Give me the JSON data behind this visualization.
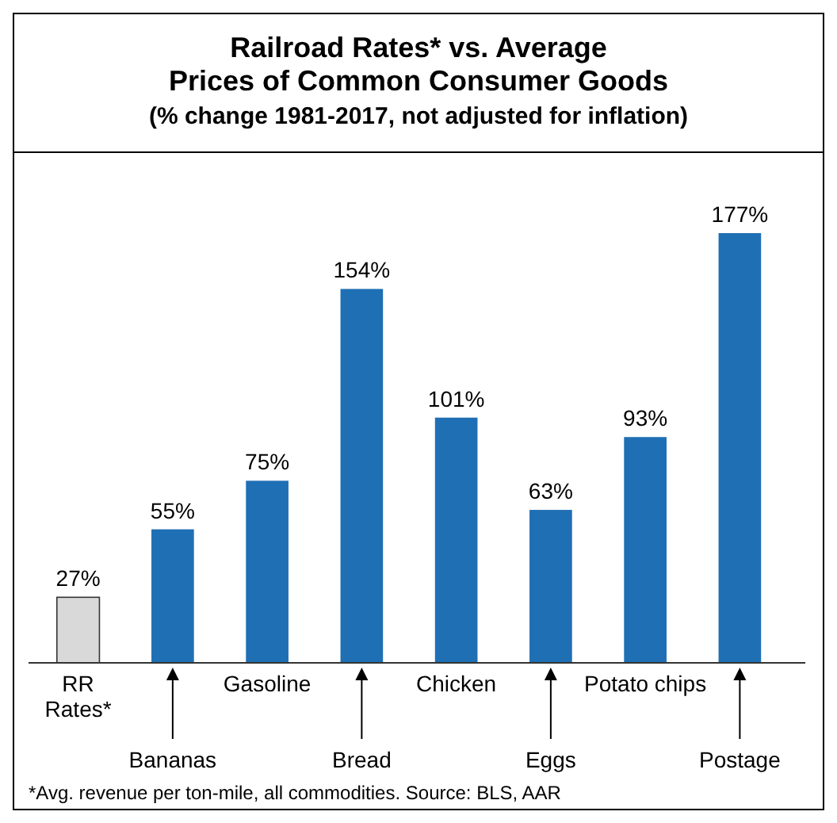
{
  "chart_data": {
    "type": "bar",
    "title": "Railroad Rates* vs. Average Prices of Common Consumer Goods",
    "subtitle": "(% change 1981-2017, not adjusted for inflation)",
    "categories": [
      "RR Rates*",
      "Bananas",
      "Gasoline",
      "Bread",
      "Chicken",
      "Eggs",
      "Potato chips",
      "Postage"
    ],
    "values": [
      27,
      55,
      75,
      154,
      101,
      63,
      93,
      177
    ],
    "colors": [
      "#d9d9d9",
      "#1f6fb4",
      "#1f6fb4",
      "#1f6fb4",
      "#1f6fb4",
      "#1f6fb4",
      "#1f6fb4",
      "#1f6fb4"
    ],
    "value_labels": [
      "27%",
      "55%",
      "75%",
      "154%",
      "101%",
      "63%",
      "93%",
      "177%"
    ],
    "annotations": [
      "*Avg. revenue per ton-mile, all commodities.  Source: BLS, AAR"
    ]
  }
}
